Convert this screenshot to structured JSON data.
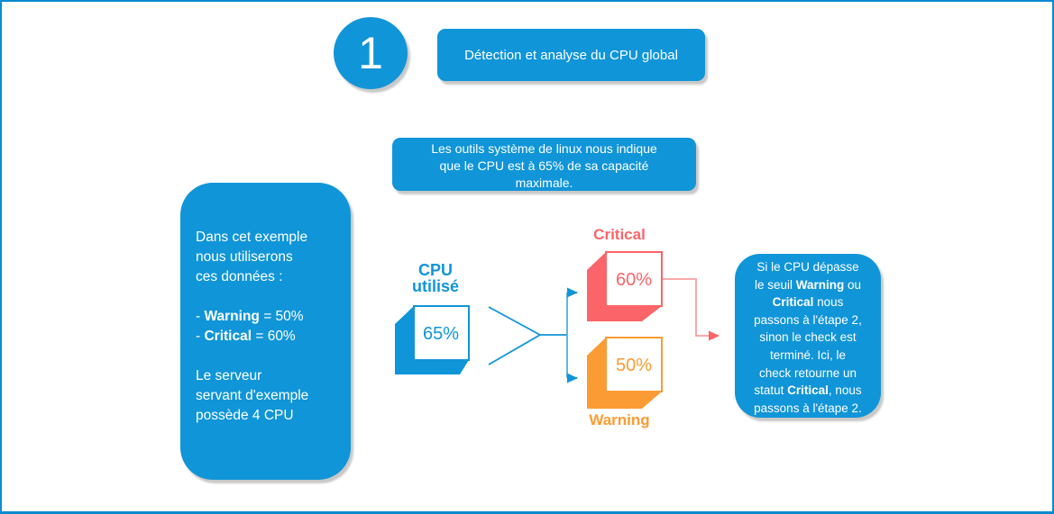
{
  "colors": {
    "blue": "#1095d8",
    "border_blue": "#0a8bd0",
    "salmon": "#fb6468",
    "salmon_light": "#f89da0",
    "orange": "#fb9b33",
    "shadow_gray": "#c8c8c8"
  },
  "step": {
    "number": "1",
    "title": "Détection et analyse du CPU global"
  },
  "info_box": {
    "lines": [
      [
        {
          "t": "Les outils système de linux nous indique"
        }
      ],
      [
        {
          "t": "que le CPU est à 65% de sa capacité"
        }
      ],
      [
        {
          "t": "maximale."
        }
      ]
    ]
  },
  "example_box": {
    "lines": [
      [
        {
          "t": "Dans cet exemple"
        }
      ],
      [
        {
          "t": "nous utiliserons"
        }
      ],
      [
        {
          "t": "ces données :"
        }
      ],
      [],
      [
        {
          "t": "- "
        },
        {
          "t": "Warning",
          "b": 1
        },
        {
          "t": " = 50%"
        }
      ],
      [
        {
          "t": "- "
        },
        {
          "t": "Critical",
          "b": 1
        },
        {
          "t": " = 60%"
        }
      ],
      [],
      [
        {
          "t": "Le serveur"
        }
      ],
      [
        {
          "t": "servant d'exemple"
        }
      ],
      [
        {
          "t": "possède 4 CPU"
        }
      ]
    ]
  },
  "cpu": {
    "label_lines": [
      [
        {
          "t": "CPU"
        }
      ],
      [
        {
          "t": "utilisé"
        }
      ]
    ],
    "value": "65%"
  },
  "critical": {
    "label": "Critical",
    "value": "60%"
  },
  "warning": {
    "label": "Warning",
    "value": "50%"
  },
  "result_box": {
    "lines": [
      [
        {
          "t": "Si le CPU dépasse"
        }
      ],
      [
        {
          "t": "le seuil "
        },
        {
          "t": "Warning",
          "b": 1
        },
        {
          "t": " ou"
        }
      ],
      [
        {
          "t": "Critical",
          "b": 1
        },
        {
          "t": " nous"
        }
      ],
      [
        {
          "t": "passons à l'étape 2,"
        }
      ],
      [
        {
          "t": "sinon le check est"
        }
      ],
      [
        {
          "t": "terminé. Ici, le"
        }
      ],
      [
        {
          "t": "check retourne un"
        }
      ],
      [
        {
          "t": "statut "
        },
        {
          "t": "Critical",
          "b": 1
        },
        {
          "t": ", nous"
        }
      ],
      [
        {
          "t": "passons à l'étape 2."
        }
      ]
    ]
  }
}
